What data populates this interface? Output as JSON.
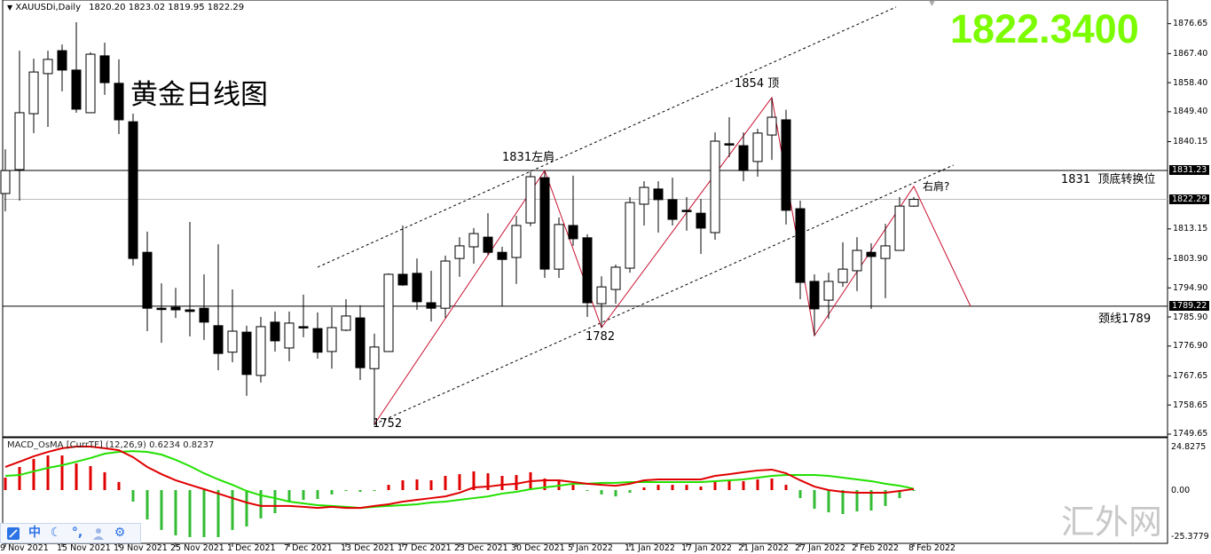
{
  "header": {
    "symbol": "XAUUSDi,Daily",
    "ohlc": "1820.20 1823.02 1819.95 1822.29"
  },
  "title_overlay": "黄金日线图",
  "price_big": "1822.3400",
  "colors": {
    "price_big": "#7cfc00",
    "bull_body": "#ffffff",
    "bear_body": "#000000",
    "zigzag": "#c8102e",
    "macd_line": "#e00000",
    "signal_line": "#22e000",
    "hist_pos": "#e00000",
    "hist_neg": "#33bb33"
  },
  "price_axis": {
    "ticks": [
      "1876.65",
      "1867.40",
      "1858.40",
      "1849.40",
      "1840.15",
      "1813.15",
      "1803.90",
      "1794.90",
      "1785.90",
      "1776.90",
      "1767.65",
      "1758.65",
      "1749.65"
    ],
    "tags": {
      "level_high": "1831.23",
      "current": "1822.29",
      "level_low": "1789.22"
    }
  },
  "macd_axis": {
    "ticks": [
      "24.8275",
      "0.00",
      "-25.3779"
    ]
  },
  "date_axis": [
    "9 Nov 2021",
    "15 Nov 2021",
    "19 Nov 2021",
    "25 Nov 2021",
    "1 Dec 2021",
    "7 Dec 2021",
    "13 Dec 2021",
    "17 Dec 2021",
    "23 Dec 2021",
    "30 Dec 2021",
    "5 Jan 2022",
    "11 Jan 2022",
    "17 Jan 2022",
    "21 Jan 2022",
    "27 Jan 2022",
    "2 Feb 2022",
    "8 Feb 2022"
  ],
  "annotations": {
    "left_shoulder": "1831左肩",
    "top": "1854 顶",
    "low_1782": "1782",
    "low_1752": "1752",
    "right_shoulder": "右肩?",
    "level_1831": "1831  顶底转换位",
    "neckline": "颈线1789"
  },
  "indicator": {
    "label": "MACD_OsMA [CurrTF] (12,26,9) 0.6234 0.8237"
  },
  "watermark": "汇外网",
  "toolbar": {
    "icons": [
      "chart-icon",
      "chinese-input-icon",
      "moon-icon",
      "punctuation-icon",
      "user-icon",
      "gear-icon"
    ],
    "chinese_label": "中"
  },
  "chart_data": {
    "type": "candlestick",
    "ohlc": [
      [
        1824.1,
        1837.8,
        1818.6,
        1831.2
      ],
      [
        1831.5,
        1868.3,
        1821.9,
        1849.1
      ],
      [
        1848.8,
        1865.8,
        1842.8,
        1861.7
      ],
      [
        1861.2,
        1868.3,
        1844.7,
        1865.6
      ],
      [
        1868.3,
        1870.2,
        1855.7,
        1862.3
      ],
      [
        1862.3,
        1877.1,
        1849.1,
        1850.2
      ],
      [
        1849.1,
        1867.8,
        1849.1,
        1867.2
      ],
      [
        1866.7,
        1870.8,
        1854.6,
        1858.4
      ],
      [
        1858.2,
        1865.6,
        1842.5,
        1846.9
      ],
      [
        1846.3,
        1848.8,
        1801.8,
        1804.0
      ],
      [
        1805.9,
        1812.3,
        1781.5,
        1788.6
      ],
      [
        1788.6,
        1796.3,
        1777.9,
        1788.3
      ],
      [
        1788.9,
        1794.9,
        1785.6,
        1788.1
      ],
      [
        1788.1,
        1815.3,
        1779.9,
        1787.6
      ],
      [
        1788.6,
        1799.1,
        1778.8,
        1784.3
      ],
      [
        1783.2,
        1808.4,
        1769.4,
        1774.6
      ],
      [
        1775.0,
        1794.4,
        1771.9,
        1781.5
      ],
      [
        1781.2,
        1783.2,
        1761.5,
        1768.1
      ],
      [
        1767.8,
        1785.9,
        1765.6,
        1782.9
      ],
      [
        1784.3,
        1787.6,
        1775.2,
        1778.5
      ],
      [
        1776.3,
        1787.6,
        1772.2,
        1784.0
      ],
      [
        1782.9,
        1792.8,
        1779.6,
        1782.7
      ],
      [
        1782.3,
        1787.3,
        1773.0,
        1775.0
      ],
      [
        1775.2,
        1788.9,
        1769.9,
        1782.6
      ],
      [
        1781.8,
        1791.4,
        1781.5,
        1786.2
      ],
      [
        1785.6,
        1789.5,
        1766.4,
        1770.2
      ],
      [
        1769.9,
        1780.7,
        1752.4,
        1776.6
      ],
      [
        1775.2,
        1799.4,
        1775.2,
        1799.1
      ],
      [
        1799.1,
        1814.2,
        1795.5,
        1795.8
      ],
      [
        1799.4,
        1804.0,
        1788.1,
        1790.6
      ],
      [
        1790.3,
        1800.2,
        1784.5,
        1788.6
      ],
      [
        1788.6,
        1804.9,
        1785.6,
        1803.2
      ],
      [
        1804.0,
        1810.6,
        1798.3,
        1807.9
      ],
      [
        1807.6,
        1813.4,
        1802.4,
        1811.7
      ],
      [
        1810.6,
        1818.0,
        1805.1,
        1805.9
      ],
      [
        1805.9,
        1807.6,
        1789.2,
        1803.7
      ],
      [
        1804.3,
        1817.2,
        1796.1,
        1814.2
      ],
      [
        1815.0,
        1830.9,
        1814.0,
        1829.3
      ],
      [
        1829.0,
        1830.9,
        1798.0,
        1800.7
      ],
      [
        1800.7,
        1816.7,
        1798.0,
        1814.5
      ],
      [
        1814.2,
        1829.6,
        1807.9,
        1810.1
      ],
      [
        1810.4,
        1811.5,
        1785.9,
        1790.3
      ],
      [
        1790.0,
        1798.5,
        1782.6,
        1795.2
      ],
      [
        1794.4,
        1802.1,
        1790.0,
        1801.3
      ],
      [
        1801.0,
        1823.0,
        1799.6,
        1821.3
      ],
      [
        1820.8,
        1827.9,
        1814.2,
        1826.0
      ],
      [
        1825.5,
        1827.9,
        1812.0,
        1822.2
      ],
      [
        1822.2,
        1829.0,
        1814.2,
        1816.1
      ],
      [
        1818.9,
        1823.0,
        1812.6,
        1818.8
      ],
      [
        1818.0,
        1822.4,
        1805.4,
        1813.4
      ],
      [
        1812.0,
        1843.0,
        1809.8,
        1840.3
      ],
      [
        1839.5,
        1847.7,
        1835.4,
        1839.3
      ],
      [
        1838.9,
        1843.0,
        1827.9,
        1831.2
      ],
      [
        1834.0,
        1844.1,
        1829.3,
        1842.8
      ],
      [
        1842.2,
        1853.5,
        1834.5,
        1847.7
      ],
      [
        1846.9,
        1850.0,
        1814.5,
        1818.9
      ],
      [
        1819.4,
        1821.9,
        1791.4,
        1796.6
      ],
      [
        1796.9,
        1799.1,
        1780.1,
        1788.4
      ],
      [
        1791.1,
        1799.6,
        1785.3,
        1796.9
      ],
      [
        1796.6,
        1809.0,
        1795.2,
        1800.7
      ],
      [
        1800.2,
        1810.6,
        1793.9,
        1806.5
      ],
      [
        1805.9,
        1808.7,
        1788.4,
        1804.6
      ],
      [
        1804.0,
        1814.7,
        1791.7,
        1807.9
      ],
      [
        1806.5,
        1823.0,
        1806.5,
        1820.2
      ],
      [
        1820.2,
        1823.02,
        1819.95,
        1822.29
      ]
    ],
    "price_range": [
      1749.65,
      1876.65
    ],
    "horizontal_levels": [
      1831.23,
      1789.22
    ],
    "current_price": 1822.29,
    "zigzag": [
      [
        26,
        1752.7
      ],
      [
        38,
        1831.2
      ],
      [
        42,
        1782.6
      ],
      [
        54,
        1853.8
      ],
      [
        57,
        1780.1
      ],
      [
        64,
        1826.3
      ],
      [
        68,
        1789.2
      ]
    ],
    "channel_upper": [
      [
        22,
        1801.3
      ],
      [
        62.75,
        1881.8
      ]
    ],
    "channel_lower": [
      [
        26,
        1752.7
      ],
      [
        66.8,
        1832.9
      ]
    ],
    "macd": {
      "range": [
        -25.3779,
        24.8275
      ],
      "histogram": [
        7.1,
        13.2,
        17.8,
        19.8,
        19.8,
        15.2,
        13.7,
        10.2,
        4.6,
        -6.6,
        -16.8,
        -22.8,
        -25.9,
        -26.9,
        -26.9,
        -26.9,
        -22.8,
        -20.8,
        -16.2,
        -13.2,
        -6.6,
        -5.6,
        -5.1,
        -2.5,
        -0.5,
        -1.0,
        -0.5,
        3.0,
        5.6,
        6.1,
        5.6,
        8.1,
        9.1,
        10.7,
        9.6,
        8.1,
        8.6,
        10.2,
        6.6,
        5.6,
        3.0,
        -0.5,
        -2.5,
        -3.6,
        -1.5,
        1.5,
        3.0,
        3.0,
        3.0,
        2.0,
        4.6,
        5.6,
        5.1,
        6.1,
        6.6,
        3.0,
        -4.6,
        -10.7,
        -12.7,
        -13.7,
        -12.2,
        -11.7,
        -9.1,
        -4.6,
        -0.2
      ],
      "macd_line": [
        13.2,
        16.2,
        19.3,
        21.8,
        23.9,
        24.9,
        24.9,
        23.9,
        22.8,
        18.8,
        13.2,
        9.1,
        5.6,
        3.0,
        0.5,
        -2.0,
        -4.6,
        -7.1,
        -9.1,
        -9.1,
        -9.1,
        -9.6,
        -10.2,
        -9.6,
        -10.2,
        -10.2,
        -9.1,
        -8.1,
        -6.6,
        -5.6,
        -4.6,
        -3.6,
        -1.5,
        1.5,
        2.0,
        3.0,
        3.6,
        5.1,
        5.6,
        5.6,
        4.6,
        3.6,
        3.0,
        2.5,
        3.6,
        5.6,
        6.1,
        6.1,
        6.1,
        6.1,
        8.1,
        9.1,
        10.2,
        11.2,
        11.7,
        9.6,
        5.6,
        2.0,
        0.0,
        -1.0,
        -1.5,
        -1.5,
        -1.5,
        -0.5,
        0.6
      ],
      "signal_line": [
        8.1,
        8.6,
        10.7,
        12.7,
        14.2,
        16.2,
        18.3,
        20.8,
        21.8,
        22.3,
        21.8,
        20.3,
        17.3,
        13.7,
        9.6,
        6.1,
        3.0,
        -0.5,
        -3.0,
        -4.6,
        -6.6,
        -7.6,
        -8.6,
        -9.1,
        -9.6,
        -10.2,
        -9.6,
        -9.1,
        -8.6,
        -8.1,
        -7.1,
        -6.6,
        -5.6,
        -4.6,
        -3.6,
        -2.0,
        -1.0,
        0.5,
        1.5,
        2.5,
        3.6,
        3.6,
        4.1,
        4.1,
        4.6,
        4.6,
        4.6,
        4.6,
        4.6,
        4.6,
        5.1,
        5.6,
        6.1,
        7.1,
        8.1,
        8.6,
        8.6,
        8.6,
        8.1,
        7.1,
        6.1,
        5.1,
        3.6,
        2.5,
        0.8
      ]
    }
  }
}
